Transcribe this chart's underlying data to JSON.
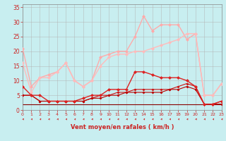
{
  "xlabel": "Vent moyen/en rafales ( km/h )",
  "background_color": "#c8eef0",
  "grid_color": "#b0b0b0",
  "x_ticks": [
    0,
    1,
    2,
    3,
    4,
    5,
    6,
    7,
    8,
    9,
    10,
    11,
    12,
    13,
    14,
    15,
    16,
    17,
    18,
    19,
    20,
    21,
    22,
    23
  ],
  "y_ticks": [
    0,
    5,
    10,
    15,
    20,
    25,
    30,
    35
  ],
  "xlim": [
    0,
    23
  ],
  "ylim": [
    0,
    36
  ],
  "lines": [
    {
      "y": [
        21,
        8,
        11,
        12,
        13,
        16,
        10,
        8,
        10,
        18,
        19,
        20,
        20,
        25,
        32,
        27,
        29,
        29,
        29,
        24,
        26,
        5,
        5,
        9
      ],
      "color": "#ffaaaa",
      "lw": 1.0,
      "marker": "D",
      "ms": 2.0,
      "zorder": 3
    },
    {
      "y": [
        16,
        6,
        11,
        11,
        13,
        16,
        10,
        8,
        10,
        15,
        18,
        19,
        19,
        20,
        20,
        21,
        22,
        23,
        24,
        26,
        26,
        5,
        5,
        9
      ],
      "color": "#ffbbbb",
      "lw": 1.0,
      "marker": "D",
      "ms": 2.0,
      "zorder": 3
    },
    {
      "y": [
        8,
        5,
        5,
        3,
        3,
        3,
        3,
        4,
        5,
        5,
        7,
        7,
        7,
        13,
        13,
        12,
        11,
        11,
        11,
        10,
        8,
        2,
        2,
        3
      ],
      "color": "#dd2222",
      "lw": 1.0,
      "marker": "D",
      "ms": 2.0,
      "zorder": 4
    },
    {
      "y": [
        5,
        5,
        3,
        3,
        3,
        3,
        3,
        3,
        4,
        5,
        5,
        6,
        6,
        7,
        7,
        7,
        7,
        7,
        8,
        9,
        8,
        2,
        2,
        3
      ],
      "color": "#cc1111",
      "lw": 0.8,
      "marker": "D",
      "ms": 1.5,
      "zorder": 3
    },
    {
      "y": [
        5,
        5,
        3,
        3,
        3,
        3,
        3,
        3,
        4,
        4,
        5,
        5,
        6,
        6,
        6,
        6,
        6,
        7,
        7,
        8,
        7,
        2,
        2,
        2
      ],
      "color": "#bb0000",
      "lw": 0.8,
      "marker": "D",
      "ms": 1.5,
      "zorder": 3
    },
    {
      "y": [
        2,
        2,
        2,
        2,
        2,
        2,
        2,
        2,
        2,
        2,
        2,
        2,
        2,
        2,
        2,
        2,
        2,
        2,
        2,
        2,
        2,
        2,
        2,
        2
      ],
      "color": "#880000",
      "lw": 0.8,
      "marker": null,
      "ms": 0,
      "zorder": 2
    }
  ],
  "arrow_color": "#cc2222",
  "xlabel_color": "#cc2222",
  "xlabel_fontsize": 6.0,
  "tick_fontsize_x": 4.5,
  "tick_fontsize_y": 5.5,
  "tick_color": "#cc2222"
}
